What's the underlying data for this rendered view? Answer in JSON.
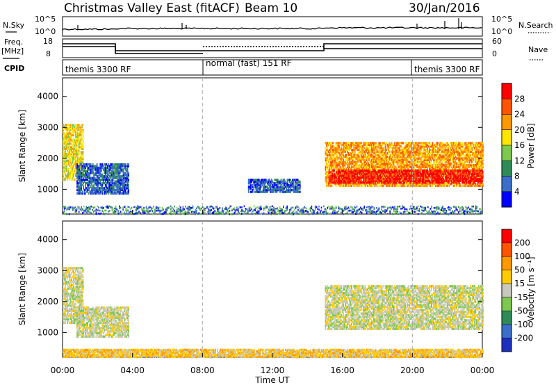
{
  "header": {
    "station": "Christmas Valley East (fitACF)",
    "beam": "Beam 10",
    "date": "30/Jan/2016"
  },
  "status_panels": {
    "nsky_label": "N.Sky",
    "nsearch_label": "N.Search",
    "freq_label_1": "Freq.",
    "freq_label_2": "[MHz]",
    "nave_label": "Nave",
    "cpid_label": "CPID",
    "noise_ticks": [
      "10^5",
      "10^0"
    ],
    "freq_ticks": [
      "18",
      "8"
    ],
    "nave_ticks": [
      "60",
      "0"
    ],
    "cpid_segments": [
      {
        "label": "themis 3300 RF",
        "start_h": 0,
        "end_h": 8
      },
      {
        "label": "normal (fast) 151 RF",
        "start_h": 8,
        "end_h": 20
      },
      {
        "label": "themis 3300 RF",
        "start_h": 20,
        "end_h": 24
      }
    ]
  },
  "chart_data": [
    {
      "type": "heatmap",
      "name": "power",
      "ylabel": "Slant Range [km]",
      "ylim": [
        200,
        4600
      ],
      "yticks": [
        1000,
        2000,
        3000,
        4000
      ],
      "xlim": [
        0,
        24
      ],
      "colorbar": {
        "label": "Power [dB]",
        "ticks": [
          "28",
          "24",
          "20",
          "16",
          "12",
          "8",
          "4"
        ],
        "colors": [
          "#0000ff",
          "#3a6ec8",
          "#2e8b57",
          "#7ec850",
          "#ffe600",
          "#ff9900",
          "#ff5500",
          "#ff0000"
        ]
      },
      "regions": [
        {
          "t0": 0.0,
          "t1": 1.2,
          "r0": 1300,
          "r1": 3100,
          "level": 4
        },
        {
          "t0": 0.8,
          "t1": 3.8,
          "r0": 850,
          "r1": 1800,
          "level": 1
        },
        {
          "t0": 2.9,
          "t1": 3.1,
          "r0": 1400,
          "r1": 1800,
          "level": 2
        },
        {
          "t0": 10.6,
          "t1": 13.6,
          "r0": 900,
          "r1": 1300,
          "level": 1
        },
        {
          "t0": 15.0,
          "t1": 24.0,
          "r0": 1100,
          "r1": 2500,
          "level": 5
        },
        {
          "t0": 15.2,
          "t1": 24.0,
          "r0": 1200,
          "r1": 1600,
          "level": 7
        }
      ]
    },
    {
      "type": "heatmap",
      "name": "velocity",
      "ylabel": "Slant Range [km]",
      "ylim": [
        200,
        4600
      ],
      "yticks": [
        1000,
        2000,
        3000,
        4000
      ],
      "xlabel": "Time UT",
      "xlim": [
        0,
        24
      ],
      "xticks": [
        "00:00",
        "04:00",
        "08:00",
        "12:00",
        "16:00",
        "20:00",
        "00:00"
      ],
      "colorbar": {
        "label": "Velocity [m s⁻¹]",
        "ticks": [
          "200",
          "100",
          "50",
          "15",
          "-15",
          "-50",
          "-100",
          "-200"
        ],
        "colors": [
          "#1e2fbf",
          "#3a6ec8",
          "#2e8b57",
          "#7ec850",
          "#c8c8be",
          "#ffcc00",
          "#ff9900",
          "#ff5500",
          "#ff0000"
        ]
      },
      "regions": [
        {
          "t0": 0.0,
          "t1": 1.2,
          "r0": 1300,
          "r1": 3100,
          "level": 4
        },
        {
          "t0": 0.8,
          "t1": 3.8,
          "r0": 850,
          "r1": 1800,
          "level": 4
        },
        {
          "t0": 15.0,
          "t1": 24.0,
          "r0": 1100,
          "r1": 2500,
          "level": 4
        },
        {
          "t0": 0.0,
          "t1": 24.0,
          "r0": 200,
          "r1": 450,
          "level": 5
        }
      ]
    }
  ]
}
